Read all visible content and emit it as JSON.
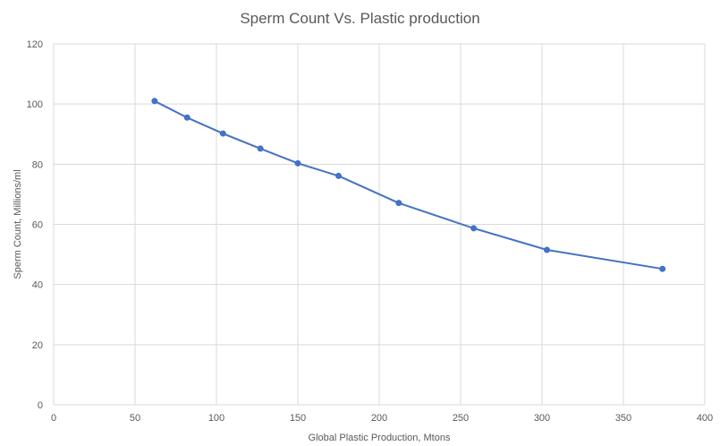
{
  "chart_data": {
    "type": "scatter",
    "title": "Sperm Count Vs. Plastic production",
    "xlabel": "Global Plastic Production, Mtons",
    "ylabel": "Sperm Count, Millions/ml",
    "xlim": [
      0,
      400
    ],
    "ylim": [
      0,
      120
    ],
    "xticks": [
      "0",
      "50",
      "100",
      "150",
      "200",
      "250",
      "300",
      "350",
      "400"
    ],
    "yticks": [
      "0",
      "20",
      "40",
      "60",
      "80",
      "100",
      "120"
    ],
    "grid": true,
    "legend": "none",
    "connected": true,
    "series": [
      {
        "color": "#4472c4",
        "x": [
          62,
          82,
          104,
          127,
          150,
          175,
          212,
          258,
          303,
          374
        ],
        "y": [
          101,
          95.5,
          90.2,
          85.2,
          80.3,
          76.1,
          67.1,
          58.7,
          51.5,
          45.2
        ]
      }
    ]
  }
}
